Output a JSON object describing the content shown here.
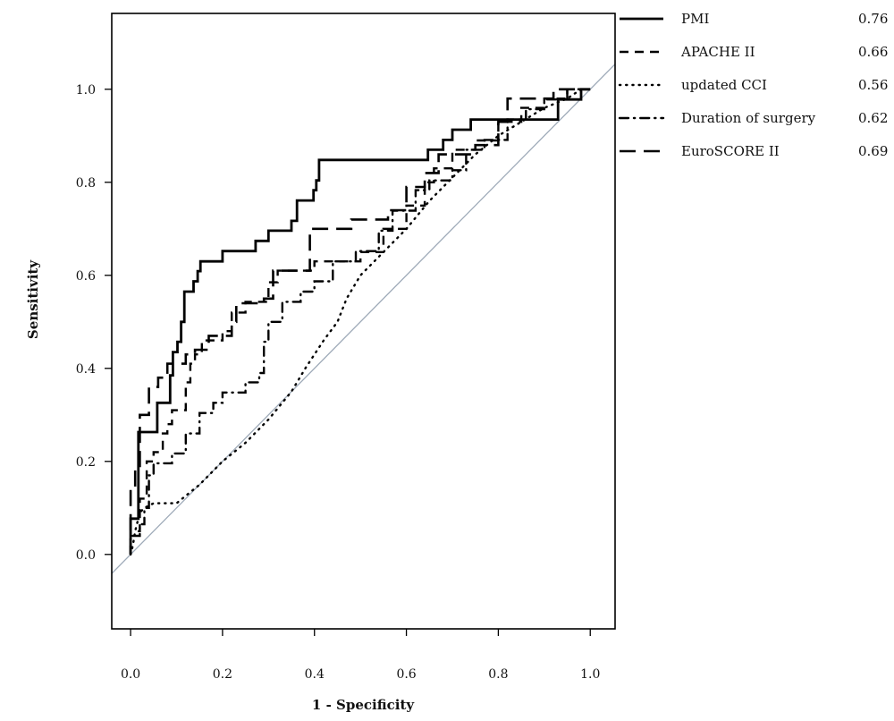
{
  "chart_data": {
    "type": "line",
    "xlabel": "1 - Specificity",
    "ylabel": "Sensitivity",
    "xlim": [
      -0.041,
      1.054
    ],
    "ylim": [
      -0.16,
      1.163
    ],
    "x_ticks": [
      "0.0",
      "0.2",
      "0.4",
      "0.6",
      "0.8",
      "1.0"
    ],
    "y_ticks": [
      "0.0",
      "0.2",
      "0.4",
      "0.6",
      "0.8",
      "1.0"
    ],
    "grid": false,
    "legend": "right",
    "reference_line_color": "#9eaab8",
    "series": [
      {
        "name": "PMI",
        "legend_value": "0.76",
        "line_style": "solid",
        "points": [
          [
            0,
            0
          ],
          [
            0,
            0.077
          ],
          [
            0.017,
            0.077
          ],
          [
            0.017,
            0.263
          ],
          [
            0.058,
            0.263
          ],
          [
            0.058,
            0.326
          ],
          [
            0.086,
            0.326
          ],
          [
            0.086,
            0.385
          ],
          [
            0.092,
            0.385
          ],
          [
            0.092,
            0.435
          ],
          [
            0.102,
            0.435
          ],
          [
            0.102,
            0.457
          ],
          [
            0.11,
            0.457
          ],
          [
            0.11,
            0.5
          ],
          [
            0.117,
            0.5
          ],
          [
            0.117,
            0.565
          ],
          [
            0.137,
            0.565
          ],
          [
            0.137,
            0.587
          ],
          [
            0.146,
            0.587
          ],
          [
            0.146,
            0.609
          ],
          [
            0.152,
            0.609
          ],
          [
            0.152,
            0.63
          ],
          [
            0.2,
            0.63
          ],
          [
            0.2,
            0.652
          ],
          [
            0.272,
            0.652
          ],
          [
            0.272,
            0.674
          ],
          [
            0.3,
            0.674
          ],
          [
            0.3,
            0.696
          ],
          [
            0.35,
            0.696
          ],
          [
            0.35,
            0.717
          ],
          [
            0.362,
            0.717
          ],
          [
            0.362,
            0.761
          ],
          [
            0.398,
            0.761
          ],
          [
            0.398,
            0.783
          ],
          [
            0.404,
            0.783
          ],
          [
            0.404,
            0.804
          ],
          [
            0.41,
            0.804
          ],
          [
            0.41,
            0.848
          ],
          [
            0.647,
            0.848
          ],
          [
            0.647,
            0.87
          ],
          [
            0.68,
            0.87
          ],
          [
            0.68,
            0.891
          ],
          [
            0.7,
            0.891
          ],
          [
            0.7,
            0.913
          ],
          [
            0.74,
            0.913
          ],
          [
            0.74,
            0.935
          ],
          [
            0.93,
            0.935
          ],
          [
            0.93,
            0.978
          ],
          [
            0.98,
            0.978
          ],
          [
            0.98,
            1
          ],
          [
            1,
            1
          ]
        ]
      },
      {
        "name": "APACHE II",
        "legend_value": "0.66",
        "line_style": "dash",
        "points": [
          [
            0,
            0
          ],
          [
            0,
            0.05
          ],
          [
            0.02,
            0.05
          ],
          [
            0.02,
            0.12
          ],
          [
            0.035,
            0.12
          ],
          [
            0.035,
            0.2
          ],
          [
            0.05,
            0.2
          ],
          [
            0.05,
            0.22
          ],
          [
            0.07,
            0.22
          ],
          [
            0.07,
            0.26
          ],
          [
            0.08,
            0.26
          ],
          [
            0.08,
            0.28
          ],
          [
            0.09,
            0.28
          ],
          [
            0.09,
            0.31
          ],
          [
            0.12,
            0.31
          ],
          [
            0.12,
            0.37
          ],
          [
            0.13,
            0.37
          ],
          [
            0.13,
            0.41
          ],
          [
            0.14,
            0.41
          ],
          [
            0.14,
            0.43
          ],
          [
            0.155,
            0.43
          ],
          [
            0.155,
            0.46
          ],
          [
            0.2,
            0.46
          ],
          [
            0.2,
            0.48
          ],
          [
            0.22,
            0.48
          ],
          [
            0.22,
            0.52
          ],
          [
            0.25,
            0.52
          ],
          [
            0.25,
            0.543
          ],
          [
            0.3,
            0.543
          ],
          [
            0.3,
            0.585
          ],
          [
            0.32,
            0.585
          ],
          [
            0.32,
            0.61
          ],
          [
            0.4,
            0.61
          ],
          [
            0.4,
            0.63
          ],
          [
            0.5,
            0.63
          ],
          [
            0.5,
            0.65
          ],
          [
            0.55,
            0.65
          ],
          [
            0.55,
            0.7
          ],
          [
            0.6,
            0.7
          ],
          [
            0.6,
            0.75
          ],
          [
            0.64,
            0.75
          ],
          [
            0.64,
            0.8
          ],
          [
            0.66,
            0.8
          ],
          [
            0.66,
            0.83
          ],
          [
            0.7,
            0.83
          ],
          [
            0.7,
            0.87
          ],
          [
            0.75,
            0.87
          ],
          [
            0.75,
            0.89
          ],
          [
            0.8,
            0.89
          ],
          [
            0.8,
            0.93
          ],
          [
            0.85,
            0.93
          ],
          [
            0.85,
            0.96
          ],
          [
            0.9,
            0.96
          ],
          [
            0.9,
            0.98
          ],
          [
            0.95,
            0.98
          ],
          [
            0.95,
            1
          ],
          [
            1,
            1
          ]
        ]
      },
      {
        "name": "updated CCI",
        "legend_value": "0.56",
        "line_style": "dot",
        "points": [
          [
            0,
            0
          ],
          [
            0.005,
            0.02
          ],
          [
            0.01,
            0.05
          ],
          [
            0.02,
            0.09
          ],
          [
            0.03,
            0.1
          ],
          [
            0.05,
            0.11
          ],
          [
            0.1,
            0.11
          ],
          [
            0.15,
            0.15
          ],
          [
            0.2,
            0.2
          ],
          [
            0.25,
            0.24
          ],
          [
            0.3,
            0.29
          ],
          [
            0.35,
            0.35
          ],
          [
            0.38,
            0.4
          ],
          [
            0.42,
            0.46
          ],
          [
            0.45,
            0.5
          ],
          [
            0.47,
            0.55
          ],
          [
            0.5,
            0.6
          ],
          [
            0.55,
            0.65
          ],
          [
            0.6,
            0.7
          ],
          [
            0.65,
            0.76
          ],
          [
            0.7,
            0.81
          ],
          [
            0.75,
            0.86
          ],
          [
            0.8,
            0.9
          ],
          [
            0.85,
            0.93
          ],
          [
            0.9,
            0.96
          ],
          [
            0.95,
            0.98
          ],
          [
            0.98,
            1
          ],
          [
            1,
            1
          ]
        ]
      },
      {
        "name": "Duration of surgery",
        "legend_value": "0.62",
        "line_style": "dotdash",
        "points": [
          [
            0,
            0
          ],
          [
            0,
            0.04
          ],
          [
            0.02,
            0.04
          ],
          [
            0.02,
            0.065
          ],
          [
            0.03,
            0.065
          ],
          [
            0.03,
            0.1
          ],
          [
            0.04,
            0.1
          ],
          [
            0.04,
            0.17
          ],
          [
            0.05,
            0.17
          ],
          [
            0.05,
            0.196
          ],
          [
            0.09,
            0.196
          ],
          [
            0.09,
            0.217
          ],
          [
            0.12,
            0.217
          ],
          [
            0.12,
            0.26
          ],
          [
            0.15,
            0.26
          ],
          [
            0.15,
            0.304
          ],
          [
            0.18,
            0.304
          ],
          [
            0.18,
            0.326
          ],
          [
            0.2,
            0.326
          ],
          [
            0.2,
            0.348
          ],
          [
            0.25,
            0.348
          ],
          [
            0.25,
            0.37
          ],
          [
            0.28,
            0.37
          ],
          [
            0.28,
            0.39
          ],
          [
            0.29,
            0.39
          ],
          [
            0.29,
            0.457
          ],
          [
            0.3,
            0.457
          ],
          [
            0.3,
            0.5
          ],
          [
            0.33,
            0.5
          ],
          [
            0.33,
            0.543
          ],
          [
            0.37,
            0.543
          ],
          [
            0.37,
            0.565
          ],
          [
            0.4,
            0.565
          ],
          [
            0.4,
            0.587
          ],
          [
            0.44,
            0.587
          ],
          [
            0.44,
            0.63
          ],
          [
            0.49,
            0.63
          ],
          [
            0.49,
            0.652
          ],
          [
            0.54,
            0.652
          ],
          [
            0.54,
            0.696
          ],
          [
            0.57,
            0.696
          ],
          [
            0.57,
            0.739
          ],
          [
            0.62,
            0.739
          ],
          [
            0.62,
            0.783
          ],
          [
            0.65,
            0.783
          ],
          [
            0.65,
            0.804
          ],
          [
            0.7,
            0.804
          ],
          [
            0.7,
            0.826
          ],
          [
            0.73,
            0.826
          ],
          [
            0.73,
            0.87
          ],
          [
            0.77,
            0.87
          ],
          [
            0.77,
            0.891
          ],
          [
            0.82,
            0.891
          ],
          [
            0.82,
            0.935
          ],
          [
            0.86,
            0.935
          ],
          [
            0.86,
            0.957
          ],
          [
            0.9,
            0.957
          ],
          [
            0.9,
            0.978
          ],
          [
            0.95,
            0.978
          ],
          [
            0.95,
            1
          ],
          [
            1,
            1
          ]
        ]
      },
      {
        "name": "EuroSCORE II",
        "legend_value": "0.69",
        "line_style": "longdash",
        "points": [
          [
            0,
            0
          ],
          [
            0,
            0.14
          ],
          [
            0.01,
            0.14
          ],
          [
            0.01,
            0.19
          ],
          [
            0.02,
            0.19
          ],
          [
            0.02,
            0.3
          ],
          [
            0.04,
            0.3
          ],
          [
            0.04,
            0.36
          ],
          [
            0.06,
            0.36
          ],
          [
            0.06,
            0.38
          ],
          [
            0.08,
            0.38
          ],
          [
            0.08,
            0.41
          ],
          [
            0.12,
            0.41
          ],
          [
            0.12,
            0.43
          ],
          [
            0.14,
            0.43
          ],
          [
            0.14,
            0.44
          ],
          [
            0.17,
            0.44
          ],
          [
            0.17,
            0.47
          ],
          [
            0.22,
            0.47
          ],
          [
            0.22,
            0.5
          ],
          [
            0.23,
            0.5
          ],
          [
            0.23,
            0.54
          ],
          [
            0.29,
            0.54
          ],
          [
            0.29,
            0.55
          ],
          [
            0.31,
            0.55
          ],
          [
            0.31,
            0.61
          ],
          [
            0.39,
            0.61
          ],
          [
            0.39,
            0.7
          ],
          [
            0.48,
            0.7
          ],
          [
            0.48,
            0.72
          ],
          [
            0.56,
            0.72
          ],
          [
            0.56,
            0.74
          ],
          [
            0.6,
            0.74
          ],
          [
            0.6,
            0.79
          ],
          [
            0.64,
            0.79
          ],
          [
            0.64,
            0.82
          ],
          [
            0.67,
            0.82
          ],
          [
            0.67,
            0.86
          ],
          [
            0.75,
            0.86
          ],
          [
            0.75,
            0.88
          ],
          [
            0.8,
            0.88
          ],
          [
            0.8,
            0.93
          ],
          [
            0.82,
            0.93
          ],
          [
            0.82,
            0.98
          ],
          [
            0.92,
            0.98
          ],
          [
            0.92,
            1
          ],
          [
            1,
            1
          ]
        ]
      }
    ]
  }
}
